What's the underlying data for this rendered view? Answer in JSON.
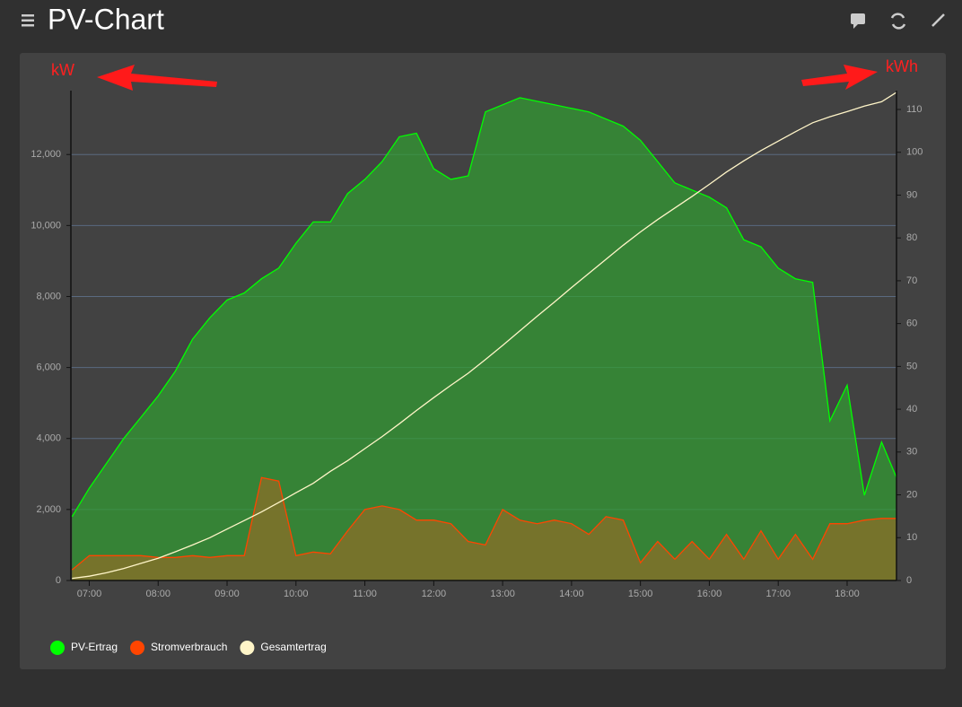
{
  "header": {
    "title": "PV-Chart"
  },
  "annotations": {
    "left_unit": "kW",
    "right_unit": "kWh"
  },
  "chart_data": {
    "type": "area",
    "x": [
      "06:45",
      "07:00",
      "07:15",
      "07:30",
      "07:45",
      "08:00",
      "08:15",
      "08:30",
      "08:45",
      "09:00",
      "09:15",
      "09:30",
      "09:45",
      "10:00",
      "10:15",
      "10:30",
      "10:45",
      "11:00",
      "11:15",
      "11:30",
      "11:45",
      "12:00",
      "12:15",
      "12:30",
      "12:45",
      "13:00",
      "13:15",
      "13:30",
      "13:45",
      "14:00",
      "14:15",
      "14:30",
      "14:45",
      "15:00",
      "15:15",
      "15:30",
      "15:45",
      "16:00",
      "16:15",
      "16:30",
      "16:45",
      "17:00",
      "17:15",
      "17:30",
      "17:45",
      "18:00",
      "18:15",
      "18:30",
      "18:43"
    ],
    "xlim": [
      "06:44",
      "18:43"
    ],
    "xticks": [
      "07:00",
      "08:00",
      "09:00",
      "10:00",
      "11:00",
      "12:00",
      "13:00",
      "14:00",
      "15:00",
      "16:00",
      "17:00",
      "18:00"
    ],
    "ylim": [
      0,
      13800
    ],
    "yticks": [
      0,
      {
        "value": 2000,
        "label": "2,000"
      },
      {
        "value": 4000,
        "label": "4,000"
      },
      {
        "value": 6000,
        "label": "6,000"
      },
      {
        "value": 8000,
        "label": "8,000"
      },
      {
        "value": 10000,
        "label": "10,000"
      },
      {
        "value": 12000,
        "label": "12,000"
      }
    ],
    "y2lim": [
      0,
      114.4
    ],
    "y2ticks": [
      0,
      10,
      20,
      30,
      40,
      50,
      60,
      70,
      80,
      90,
      100,
      110
    ],
    "grid": true,
    "legend": "bottom-left",
    "series": [
      {
        "name": "PV-Ertrag",
        "color": "#00ff00",
        "fill": "rgba(50,160,50,0.7)",
        "values": [
          1800,
          2600,
          3300,
          4000,
          4600,
          5200,
          5900,
          6800,
          7400,
          7900,
          8100,
          8500,
          8800,
          9500,
          10100,
          10100,
          10900,
          11300,
          11800,
          12500,
          12600,
          11600,
          11300,
          11400,
          13200,
          13400,
          13600,
          13500,
          13400,
          13300,
          13200,
          13000,
          12800,
          12400,
          11800,
          11200,
          11000,
          10800,
          10500,
          9600,
          9400,
          8800,
          8500,
          8400,
          4500,
          5500,
          2400,
          3900,
          2900
        ]
      },
      {
        "name": "Stromverbrauch",
        "color": "#ff4500",
        "fill": "rgba(140,110,40,0.75)",
        "values": [
          300,
          700,
          700,
          700,
          700,
          650,
          650,
          700,
          650,
          700,
          700,
          2900,
          2800,
          700,
          800,
          750,
          1400,
          2000,
          2100,
          2000,
          1700,
          1700,
          1600,
          1100,
          1000,
          2000,
          1700,
          1600,
          1700,
          1600,
          1300,
          1800,
          1700,
          500,
          1100,
          600,
          1100,
          600,
          1300,
          600,
          1400,
          600,
          1300,
          600,
          1600,
          1600,
          1700,
          1750,
          1750
        ]
      },
      {
        "name": "Gesamtertrag",
        "color": "#fff5c8",
        "axis": "y2",
        "values": [
          0.5,
          1,
          1.8,
          2.8,
          4,
          5.2,
          6.7,
          8.3,
          10,
          12,
          14,
          16,
          18.2,
          20.5,
          22.7,
          25.5,
          28,
          30.8,
          33.6,
          36.6,
          39.7,
          42.7,
          45.6,
          48.4,
          51.6,
          54.9,
          58.3,
          61.7,
          65,
          68.4,
          71.7,
          75,
          78.3,
          81.4,
          84.3,
          87,
          89.7,
          92.5,
          95.4,
          98,
          100.4,
          102.6,
          104.8,
          106.9,
          108.3,
          109.5,
          110.8,
          111.8,
          114
        ]
      }
    ]
  }
}
